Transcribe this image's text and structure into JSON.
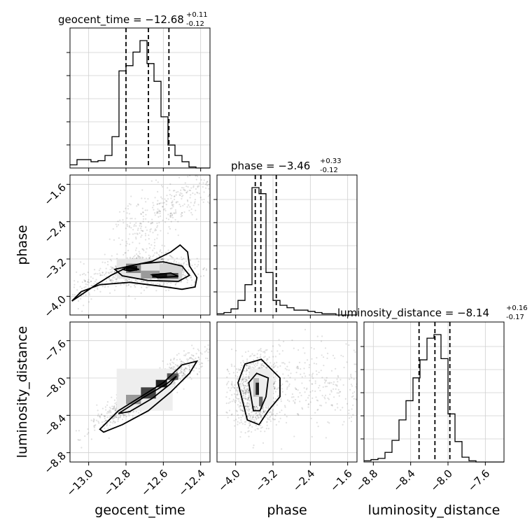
{
  "chart_data": {
    "type": "corner",
    "params": [
      {
        "name": "geocent_time",
        "median": "-12.68",
        "plus": "+0.11",
        "minus": "-0.12",
        "title_text": "geocent_time = −12.68",
        "range": [
          -13.1,
          -12.35
        ],
        "quantiles": [
          -12.8,
          -12.68,
          -12.57
        ]
      },
      {
        "name": "phase",
        "median": "-3.46",
        "plus": "+0.33",
        "minus": "-0.12",
        "title_text": "phase = −3.46",
        "range": [
          -4.4,
          -1.4
        ],
        "quantiles": [
          -3.58,
          -3.46,
          -3.13
        ]
      },
      {
        "name": "luminosity_distance",
        "median": "-8.14",
        "plus": "+0.16",
        "minus": "-0.17",
        "title_text": "luminosity_distance = −8.14",
        "range": [
          -8.9,
          -7.4
        ],
        "quantiles": [
          -8.31,
          -8.14,
          -7.98
        ]
      }
    ],
    "hist1d": [
      {
        "edges_start": -13.1,
        "edges_step": 0.0375,
        "counts": [
          3,
          8,
          8,
          6,
          7,
          12,
          30,
          93,
          98,
          111,
          122,
          100,
          83,
          49,
          22,
          12,
          6,
          1,
          0,
          0
        ]
      },
      {
        "edges_start": -4.4,
        "edges_step": 0.15,
        "counts": [
          1,
          2,
          5,
          12,
          25,
          105,
          100,
          35,
          12,
          8,
          6,
          4,
          4,
          3,
          2,
          1,
          1,
          0,
          0,
          0
        ]
      },
      {
        "edges_start": -8.9,
        "edges_step": 0.075,
        "counts": [
          1,
          2,
          3,
          8,
          18,
          35,
          51,
          70,
          85,
          103,
          106,
          86,
          40,
          17,
          4,
          1,
          0,
          0,
          0,
          0
        ]
      }
    ],
    "tick_labels": {
      "geocent_time": [
        "−13.0",
        "−12.8",
        "−12.6",
        "−12.4"
      ],
      "phase": [
        "−4.0",
        "−3.2",
        "−2.4",
        "−1.6"
      ],
      "luminosity_distance": [
        "−8.8",
        "−8.4",
        "−8.0",
        "−7.6"
      ]
    },
    "tick_values": {
      "geocent_time": [
        -13.0,
        -12.8,
        -12.6,
        -12.4
      ],
      "phase": [
        -4.0,
        -3.2,
        -2.4,
        -1.6
      ],
      "luminosity_distance": [
        -8.8,
        -8.4,
        -8.0,
        -7.6
      ]
    },
    "grid": true
  }
}
